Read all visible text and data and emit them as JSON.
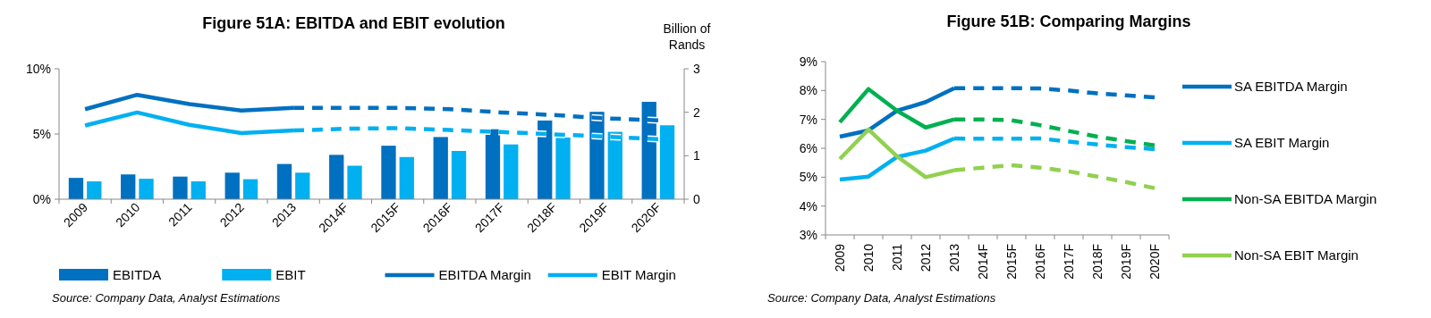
{
  "chart_data": [
    {
      "type": "bar",
      "title": "Figure 51A: EBITDA and EBIT evolution",
      "y2label": "Billion of Rands",
      "categories": [
        "2009",
        "2010",
        "2011",
        "2012",
        "2013",
        "2014F",
        "2015F",
        "2016F",
        "2017F",
        "2018F",
        "2019F",
        "2020F"
      ],
      "series": [
        {
          "name": "EBITDA",
          "type": "bar",
          "axis": "y2",
          "color": "#0070c0",
          "values": [
            0.49,
            0.57,
            0.52,
            0.61,
            0.81,
            1.02,
            1.23,
            1.43,
            1.61,
            1.81,
            2.01,
            2.24
          ]
        },
        {
          "name": "EBIT",
          "type": "bar",
          "axis": "y2",
          "color": "#00b0f0",
          "values": [
            0.41,
            0.47,
            0.41,
            0.46,
            0.61,
            0.77,
            0.97,
            1.11,
            1.26,
            1.42,
            1.55,
            1.7
          ]
        },
        {
          "name": "EBITDA Margin",
          "type": "line",
          "line_style": "solid",
          "color": "#0070c0",
          "values": [
            6.9,
            8.0,
            7.3,
            6.8,
            7.0,
            null,
            null,
            null,
            null,
            null,
            null,
            null
          ]
        },
        {
          "type": "line",
          "line_style": "dashed",
          "color": "#0070c0",
          "values": [
            null,
            null,
            null,
            null,
            7.0,
            7.0,
            7.0,
            6.9,
            6.65,
            6.45,
            6.2,
            6.05
          ]
        },
        {
          "name": "EBIT Margin",
          "type": "line",
          "line_style": "solid",
          "color": "#00b0f0",
          "values": [
            5.65,
            6.65,
            5.7,
            5.07,
            5.27,
            null,
            null,
            null,
            null,
            null,
            null,
            null
          ]
        },
        {
          "type": "line",
          "line_style": "dashed",
          "color": "#00b0f0",
          "values": [
            null,
            null,
            null,
            null,
            5.27,
            5.4,
            5.45,
            5.3,
            5.15,
            4.97,
            4.8,
            4.6
          ]
        }
      ],
      "ylim": [
        0,
        10
      ],
      "yticks": [
        {
          "value": 0,
          "label": "0%"
        },
        {
          "value": 5,
          "label": "5%"
        },
        {
          "value": 10,
          "label": "10%"
        }
      ],
      "y2lim": [
        0,
        3
      ],
      "y2ticks": [
        0,
        1,
        2,
        3
      ],
      "grid": false,
      "legend": "bottom",
      "annotations": [
        "Source: Company Data, Analyst Estimations"
      ]
    },
    {
      "type": "line",
      "title": "Figure 51B: Comparing Margins",
      "categories": [
        "2009",
        "2010",
        "2011",
        "2012",
        "2013",
        "2014F",
        "2015F",
        "2016F",
        "2017F",
        "2018F",
        "2019F",
        "2020F"
      ],
      "series": [
        {
          "name": "SA EBITDA Margin",
          "line_style": "solid",
          "color": "#0070c0",
          "values": [
            6.4,
            6.62,
            7.3,
            7.6,
            8.08,
            null,
            null,
            null,
            null,
            null,
            null,
            null
          ]
        },
        {
          "line_style": "dashed",
          "color": "#0070c0",
          "values": [
            null,
            null,
            null,
            null,
            8.08,
            8.08,
            8.08,
            8.07,
            8.0,
            7.9,
            7.83,
            7.76
          ]
        },
        {
          "name": "SA EBIT Margin",
          "line_style": "solid",
          "color": "#00b0f0",
          "values": [
            4.92,
            5.02,
            5.7,
            5.92,
            6.34,
            null,
            null,
            null,
            null,
            null,
            null,
            null
          ]
        },
        {
          "line_style": "dashed",
          "color": "#00b0f0",
          "values": [
            null,
            null,
            null,
            null,
            6.34,
            6.33,
            6.33,
            6.34,
            6.23,
            6.13,
            6.04,
            5.97
          ]
        },
        {
          "name": "Non-SA EBITDA Margin",
          "line_style": "solid",
          "color": "#00b050",
          "values": [
            6.9,
            8.05,
            7.3,
            6.72,
            7.0,
            null,
            null,
            null,
            null,
            null,
            null,
            null
          ]
        },
        {
          "line_style": "dashed",
          "color": "#00b050",
          "values": [
            null,
            null,
            null,
            null,
            7.0,
            7.0,
            6.97,
            6.8,
            6.6,
            6.4,
            6.25,
            6.1
          ]
        },
        {
          "name": "Non-SA EBIT Margin",
          "line_style": "solid",
          "color": "#92d050",
          "values": [
            5.63,
            6.65,
            5.72,
            5.0,
            5.24,
            null,
            null,
            null,
            null,
            null,
            null,
            null
          ]
        },
        {
          "line_style": "dashed",
          "color": "#92d050",
          "values": [
            null,
            null,
            null,
            null,
            5.24,
            5.33,
            5.41,
            5.33,
            5.2,
            5.02,
            4.83,
            4.62
          ]
        }
      ],
      "ylim": [
        3,
        9
      ],
      "yticks": [
        {
          "value": 3,
          "label": "3%"
        },
        {
          "value": 4,
          "label": "4%"
        },
        {
          "value": 5,
          "label": "5%"
        },
        {
          "value": 6,
          "label": "6%"
        },
        {
          "value": 7,
          "label": "7%"
        },
        {
          "value": 8,
          "label": "8%"
        },
        {
          "value": 9,
          "label": "9%"
        }
      ],
      "grid": false,
      "legend": "right",
      "annotations": [
        "Source: Company Data, Analyst Estimations"
      ]
    }
  ]
}
